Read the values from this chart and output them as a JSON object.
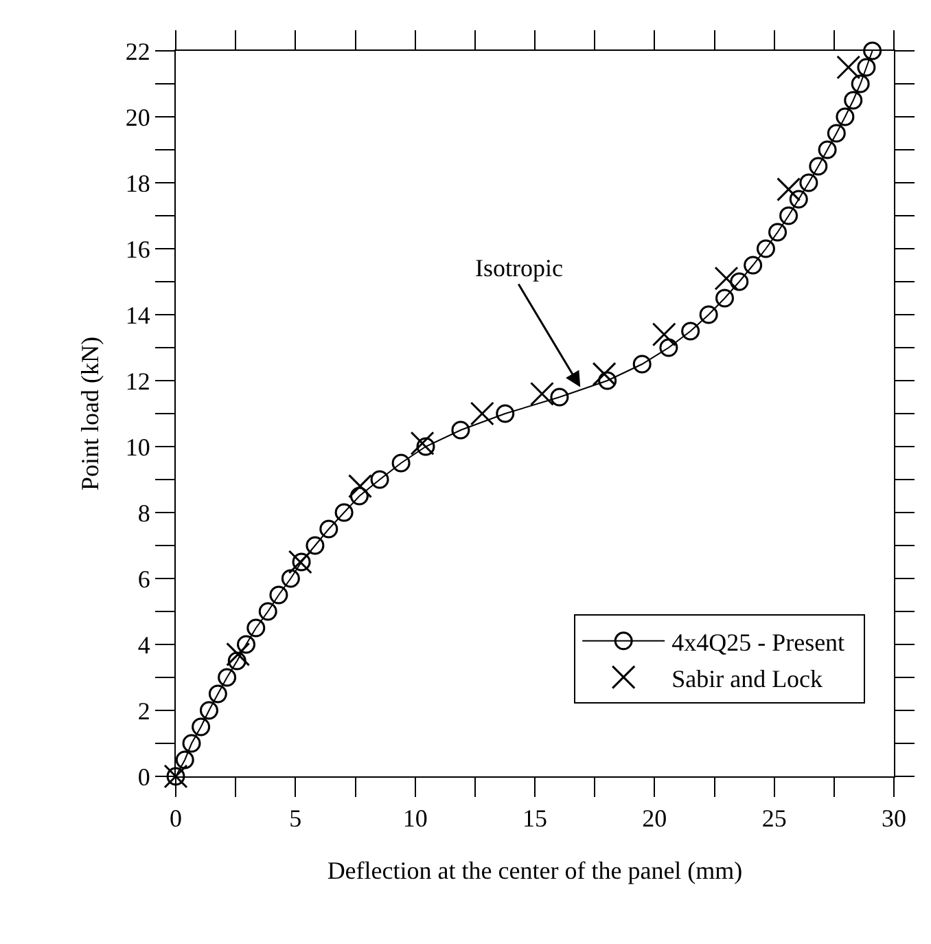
{
  "chart_data": {
    "type": "line",
    "xlabel": "Deflection at the center of the panel (mm)",
    "ylabel": "Point load (kN)",
    "xlim": [
      0,
      30
    ],
    "ylim": [
      0,
      22
    ],
    "xticks": [
      0,
      {
        "value": 2.5,
        "label": null
      },
      5,
      {
        "value": 7.5,
        "label": null
      },
      10,
      {
        "value": 12.5,
        "label": null
      },
      15,
      {
        "value": 17.5,
        "label": null
      },
      20,
      {
        "value": 22.5,
        "label": null
      },
      25,
      {
        "value": 27.5,
        "label": null
      },
      30
    ],
    "yticks": [
      0,
      {
        "value": 1,
        "label": null
      },
      2,
      {
        "value": 3,
        "label": null
      },
      4,
      {
        "value": 5,
        "label": null
      },
      6,
      {
        "value": 7,
        "label": null
      },
      8,
      {
        "value": 9,
        "label": null
      },
      10,
      {
        "value": 11,
        "label": null
      },
      12,
      {
        "value": 13,
        "label": null
      },
      14,
      {
        "value": 15,
        "label": null
      },
      16,
      {
        "value": 17,
        "label": null
      },
      18,
      {
        "value": 19,
        "label": null
      },
      20,
      {
        "value": 21,
        "label": null
      },
      22
    ],
    "legend": "bottom right",
    "annotations": [
      {
        "text": "Isotropic",
        "x": 16.9,
        "y": 11.8
      }
    ],
    "series": [
      {
        "name": "4x4Q25 - Present",
        "marker": "circle",
        "line_style": "solid",
        "color": "#000000",
        "x": [
          0,
          0.38,
          0.66,
          1.05,
          1.39,
          1.76,
          2.14,
          2.56,
          2.94,
          3.35,
          3.85,
          4.3,
          4.8,
          5.25,
          5.82,
          6.39,
          7.03,
          7.67,
          8.52,
          9.41,
          10.44,
          11.9,
          13.76,
          16.03,
          18.03,
          19.48,
          20.59,
          21.5,
          22.26,
          22.93,
          23.54,
          24.11,
          24.65,
          25.14,
          25.6,
          26.02,
          26.44,
          26.84,
          27.22,
          27.6,
          27.96,
          28.3,
          28.6,
          28.85,
          29.1
        ],
        "values": [
          0,
          0.5,
          1,
          1.5,
          2,
          2.5,
          3,
          3.5,
          4,
          4.5,
          5,
          5.5,
          6,
          6.5,
          7,
          7.5,
          8,
          8.5,
          9,
          9.5,
          10,
          10.5,
          11,
          11.5,
          12,
          12.5,
          13,
          13.5,
          14,
          14.5,
          15,
          15.5,
          16,
          16.5,
          17,
          17.5,
          18,
          18.5,
          19,
          19.5,
          20,
          20.5,
          21,
          21.5,
          22
        ]
      },
      {
        "name": "Sabir and Lock",
        "type": "scatter",
        "marker": "cross",
        "color": "#000000",
        "x": [
          0,
          2.6,
          5.2,
          7.7,
          10.3,
          12.8,
          15.3,
          17.9,
          20.4,
          23.0,
          25.6,
          28.1
        ],
        "values": [
          0,
          3.7,
          6.5,
          8.8,
          10.1,
          11.0,
          11.6,
          12.2,
          13.4,
          15.1,
          17.8,
          21.5
        ]
      }
    ]
  }
}
